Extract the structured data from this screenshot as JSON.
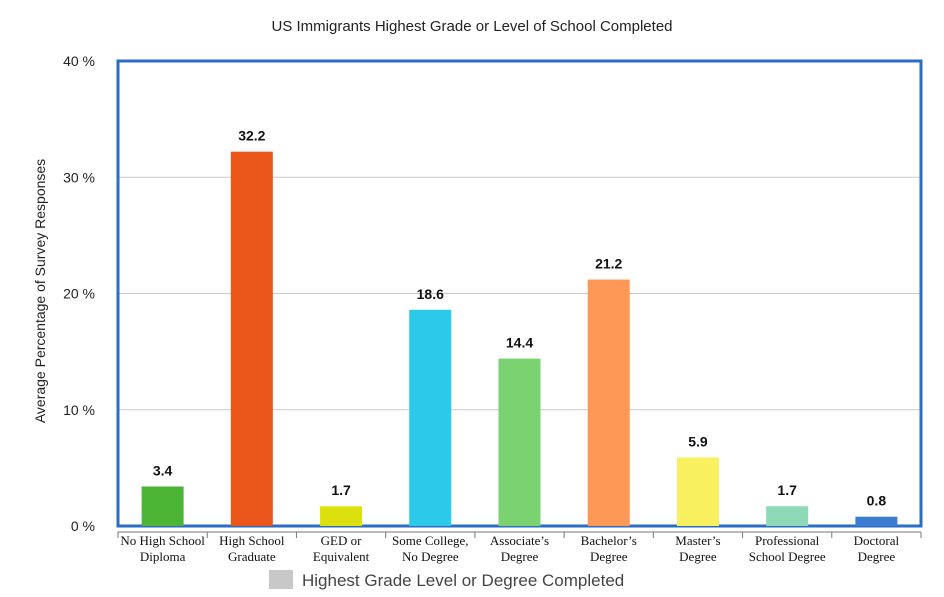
{
  "chart_data": {
    "type": "bar",
    "title": "US Immigrants Highest Grade or Level of School Completed",
    "ylabel": "Average Percentage of Survey Responses",
    "ylim": [
      0,
      40
    ],
    "yticks": [
      "0 %",
      "10 %",
      "20 %",
      "30 %",
      "40 %"
    ],
    "grid": true,
    "categories": [
      [
        "No High School",
        "Diploma"
      ],
      [
        "High School",
        "Graduate"
      ],
      [
        "GED or",
        "Equivalent"
      ],
      [
        "Some College,",
        "No Degree"
      ],
      [
        "Associate’s",
        "Degree"
      ],
      [
        "Bachelor’s",
        "Degree"
      ],
      [
        "Master’s",
        "Degree"
      ],
      [
        "Professional",
        "School Degree"
      ],
      [
        "Doctoral",
        "Degree"
      ]
    ],
    "values": [
      3.4,
      32.2,
      1.7,
      18.6,
      14.4,
      21.2,
      5.9,
      1.7,
      0.8
    ],
    "value_labels": [
      "3.4",
      "32.2",
      "1.7",
      "18.6",
      "14.4",
      "21.2",
      "5.9",
      "1.7",
      "0.8"
    ],
    "colors": [
      "#4db535",
      "#eb561b",
      "#dde00f",
      "#2ccae8",
      "#7bd270",
      "#fd9857",
      "#f8f05e",
      "#8ed9b8",
      "#3a7cd0"
    ],
    "legend": {
      "label": "Highest Grade Level or Degree Completed",
      "color": "#c8c8c8",
      "position": "bottom-center"
    },
    "frame_color": "#2b6cc4"
  }
}
